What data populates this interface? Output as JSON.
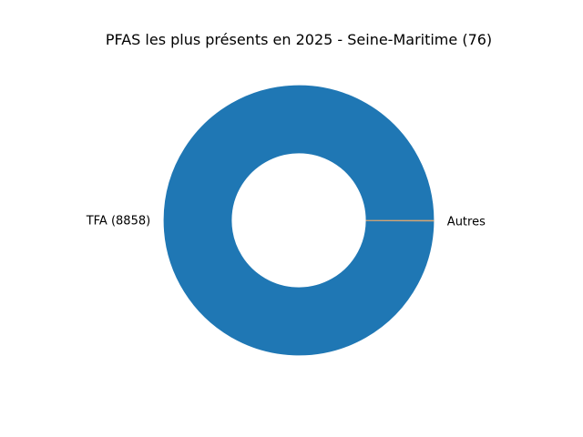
{
  "chart_data": {
    "type": "pie",
    "variant": "donut",
    "title": "PFAS les plus présents en 2025 - Seine-Maritime (76)",
    "slices": [
      {
        "label": "TFA (8858)",
        "value": 8858,
        "color": "#1f77b4"
      },
      {
        "label": "Autres",
        "value": 8,
        "color": "#d4a574"
      }
    ],
    "legend": "none"
  }
}
